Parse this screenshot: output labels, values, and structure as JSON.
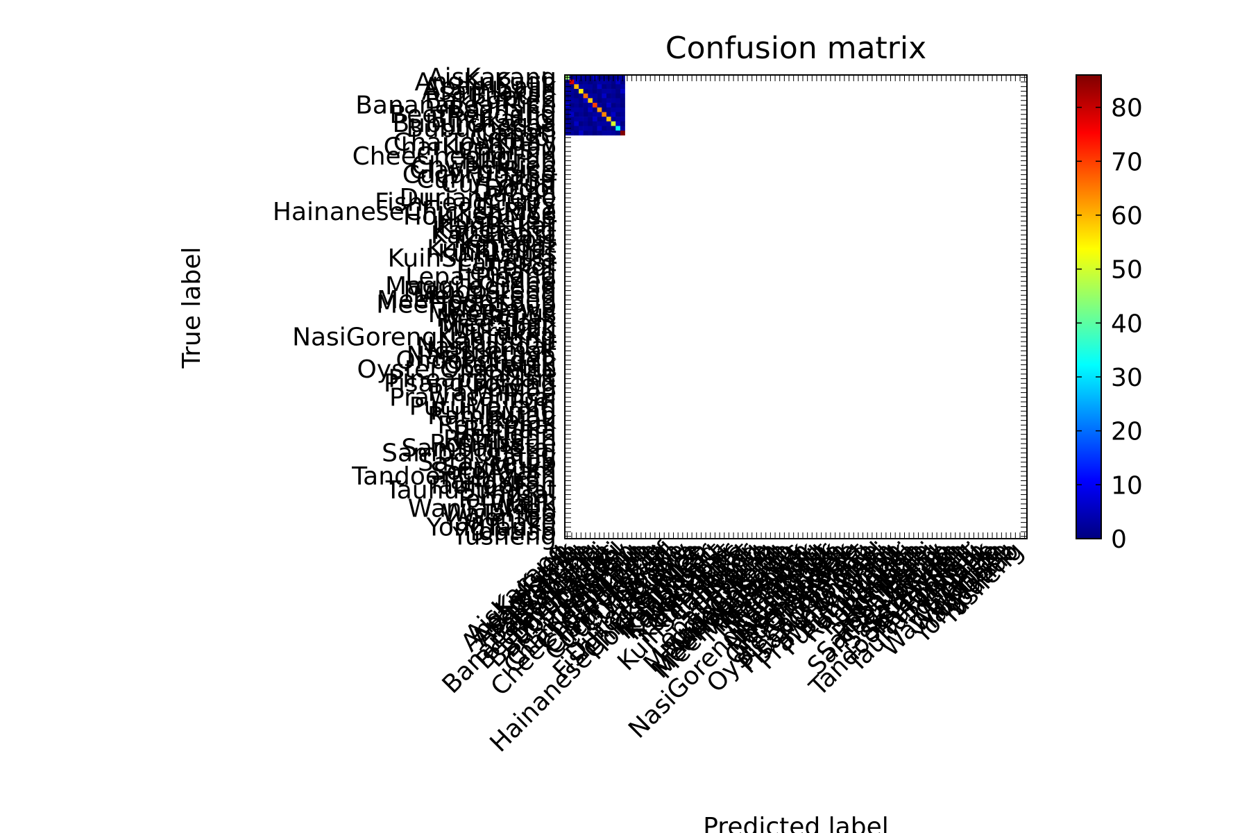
{
  "chart_data": {
    "type": "heatmap",
    "title": "Confusion matrix",
    "xlabel": "Predicted label",
    "ylabel": "True label",
    "colormap": "jet",
    "colorbar": {
      "min": 0,
      "max": 86,
      "ticks": [
        0,
        10,
        20,
        30,
        40,
        50,
        60,
        70,
        80
      ]
    },
    "grid": false,
    "class_count": 100,
    "labels": [
      "AisKacang",
      "AngKuKueh",
      "ApamBalik",
      "Asamlaksa",
      "Bahulu",
      "Bakkukteh",
      "BananaLeafRice",
      "Bazhang",
      "BeefRendang",
      "BingkaUbi",
      "Buburchacha",
      "Buburpedas",
      "Capati",
      "Cendol",
      "ChaiTowKuay",
      "CharKuehTiao",
      "CharSiu",
      "CheeCheongFun",
      "ChiliCrab",
      "Chweekueh",
      "ClayPotRice",
      "CucurUdang",
      "CurryLaksa",
      "CurryPuff",
      "Dodol",
      "Durian",
      "DurianCrepe",
      "FishHeadCurry",
      "Guava",
      "HainaneseChickenRice",
      "HokkienMee",
      "Huatkueh",
      "IkanBakar",
      "Kangkung",
      "KayaToast",
      "Keklapis",
      "Ketupat",
      "KuihDadar",
      "KuihLapis",
      "KuihSeriMuka",
      "Langsat",
      "Lekor",
      "Lemang",
      "LepatPisang",
      "LorMee",
      "Maggi goreng",
      "Mangosteen",
      "MeeGoreng",
      "MeeHoonKueh",
      "MeeHoonSoup",
      "MeeJawa",
      "MeeRebus",
      "MeeRojak",
      "MeeSiam",
      "Murtabak",
      "Murukku",
      "NasiGorengKampung",
      "NasiImpit",
      "Nasikandar",
      "Nasilemak",
      "Nasipattaya",
      "Ondehondeh",
      "Otakotak",
      "OysterOmelette",
      "PanMee",
      "PineappleTart",
      "PisangGoreng",
      "Popiah",
      "PrawnMee",
      "Prawnsambal",
      "Puri",
      "PutuMayam",
      "PutuPiring",
      "Rambutan",
      "Rojak",
      "RotiCanai",
      "RotiJala",
      "RotiJohn",
      "RotiNaan",
      "RotiTissue",
      "SambalPetai",
      "SambalUdang",
      "Satay",
      "Sataycelup",
      "SeriMuka",
      "SotoAyam",
      "TandooriChicken",
      "TangYuan",
      "TauFooFah",
      "TauhuSumbat",
      "Thosai",
      "TomYam",
      "Wajik",
      "WanTanMee",
      "WaTanHo",
      "Wonton",
      "YamCake",
      "YongTauFu",
      "Youtiao",
      "Yusheng"
    ],
    "observed_classes": 13,
    "diagonal": [
      45,
      78,
      60,
      55,
      66,
      58,
      70,
      62,
      64,
      59,
      50,
      32,
      86
    ],
    "off_diagonal_range": [
      0,
      8
    ]
  }
}
